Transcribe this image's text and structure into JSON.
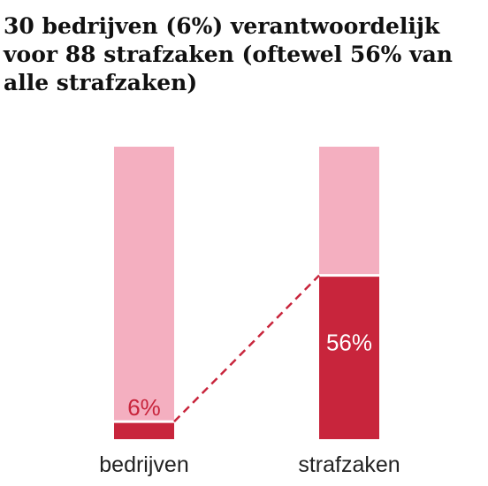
{
  "chart_data": {
    "type": "bar",
    "title": "30 bedrijven (6%) verantwoordelijk voor 88 strafzaken (oftewel 56% van alle strafzaken)",
    "categories": [
      "bedrijven",
      "strafzaken"
    ],
    "values": [
      6,
      56
    ],
    "value_labels": [
      "6%",
      "56%"
    ],
    "unit": "%",
    "ylim": [
      0,
      100
    ],
    "stacked_to_total": true,
    "connector": "dashed",
    "colors": {
      "highlight": "#c8253c",
      "remainder": "#f4afc0",
      "separator": "#ffffff"
    }
  }
}
